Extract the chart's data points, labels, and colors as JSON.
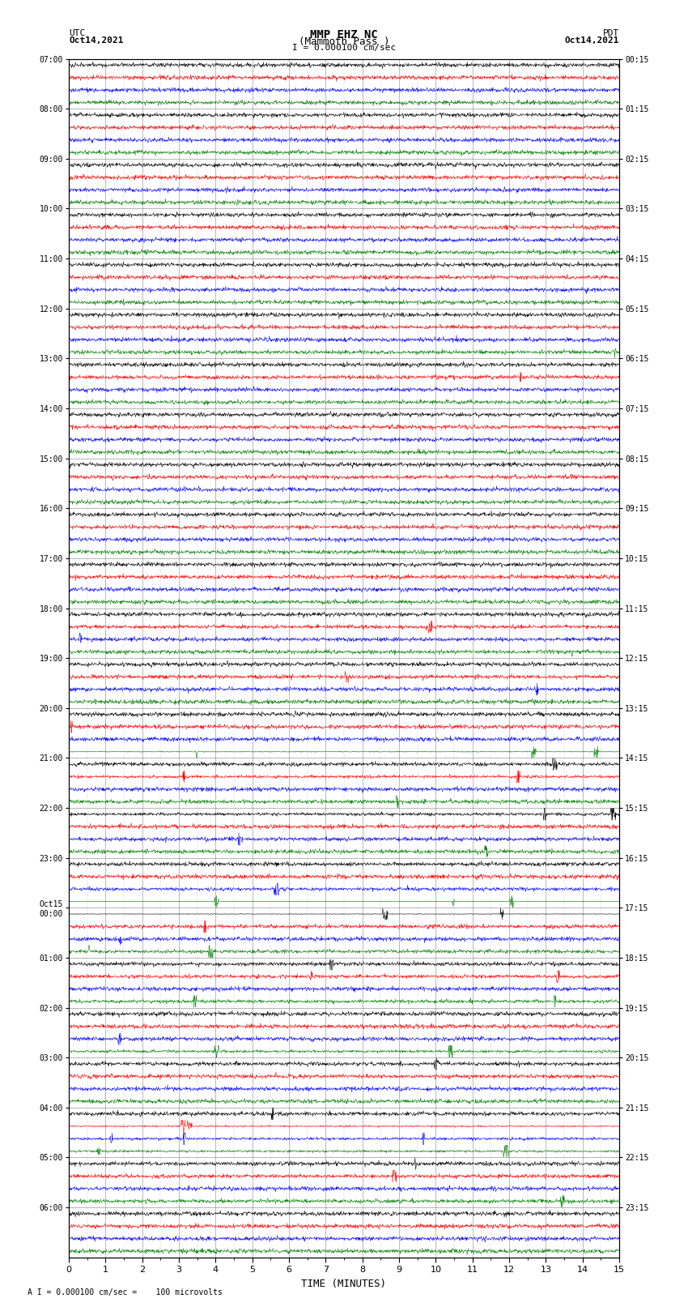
{
  "title_line1": "MMP EHZ NC",
  "title_line2": "(Mammoth Pass )",
  "scale_label": "I = 0.000100 cm/sec",
  "footer_label": "A I = 0.000100 cm/sec =    100 microvolts",
  "utc_label": "UTC",
  "utc_date": "Oct14,2021",
  "pdt_label": "PDT",
  "pdt_date": "Oct14,2021",
  "xlabel": "TIME (MINUTES)",
  "left_labels": [
    "07:00",
    "08:00",
    "09:00",
    "10:00",
    "11:00",
    "12:00",
    "13:00",
    "14:00",
    "15:00",
    "16:00",
    "17:00",
    "18:00",
    "19:00",
    "20:00",
    "21:00",
    "22:00",
    "23:00",
    "Oct15\n00:00",
    "01:00",
    "02:00",
    "03:00",
    "04:00",
    "05:00",
    "06:00"
  ],
  "right_labels": [
    "00:15",
    "01:15",
    "02:15",
    "03:15",
    "04:15",
    "05:15",
    "06:15",
    "07:15",
    "08:15",
    "09:15",
    "10:15",
    "11:15",
    "12:15",
    "13:15",
    "14:15",
    "15:15",
    "16:15",
    "17:15",
    "18:15",
    "19:15",
    "20:15",
    "21:15",
    "22:15",
    "23:15"
  ],
  "trace_colors": [
    "black",
    "red",
    "blue",
    "green"
  ],
  "n_hours": 24,
  "n_traces_per_hour": 4,
  "minutes": 15,
  "sample_rate": 100,
  "grid_color": "#888888",
  "background_color": "white",
  "fig_width": 8.5,
  "fig_height": 16.13,
  "dpi": 100
}
